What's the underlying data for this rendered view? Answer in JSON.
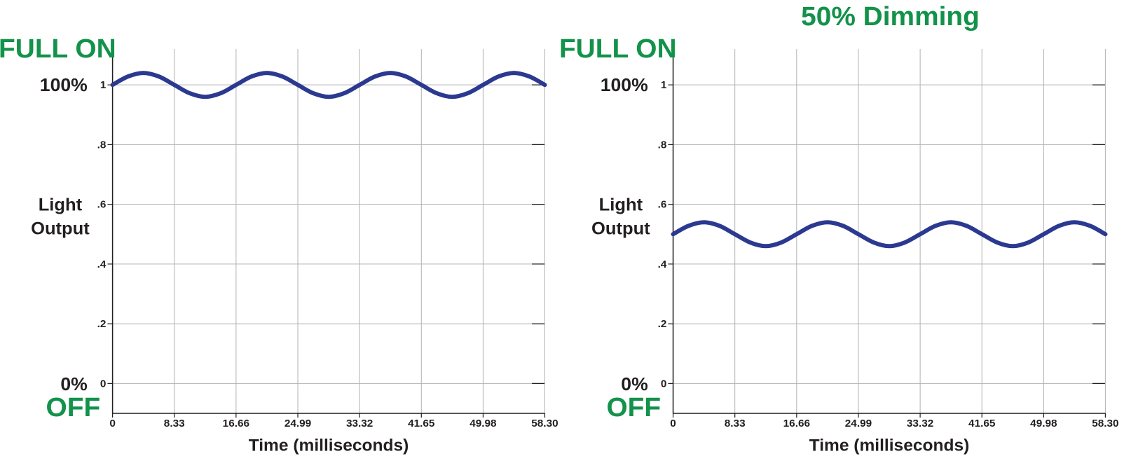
{
  "chart_data": [
    {
      "type": "line",
      "annotations": [
        "FULL ON",
        "100%",
        "0%",
        "OFF"
      ],
      "y_label": [
        "Light",
        "Output"
      ],
      "x_label": "Time (milliseconds)",
      "x": [
        0,
        2.08,
        4.16,
        6.25,
        8.33,
        10.41,
        12.5,
        14.58,
        16.66,
        18.74,
        20.82,
        22.91,
        24.99,
        27.07,
        29.16,
        31.24,
        33.32,
        35.4,
        37.48,
        39.57,
        41.65,
        43.73,
        45.82,
        47.9,
        49.98,
        52.06,
        54.14,
        56.23,
        58.3
      ],
      "series": [
        {
          "color": "#2b3990",
          "values": [
            1,
            1.028,
            1.04,
            1.028,
            1,
            0.972,
            0.96,
            0.972,
            1,
            1.028,
            1.04,
            1.028,
            1,
            0.972,
            0.96,
            0.972,
            1,
            1.028,
            1.04,
            1.028,
            1,
            0.972,
            0.96,
            0.972,
            1,
            1.028,
            1.04,
            1.028,
            1
          ]
        }
      ],
      "xlim": [
        0,
        58.3
      ],
      "xticks": [
        0,
        8.33,
        16.66,
        24.99,
        33.32,
        41.65,
        49.98,
        {
          "value": 58.3,
          "label": "58.30"
        }
      ],
      "ylim": [
        -0.1,
        1.12
      ],
      "yticks": [
        0,
        {
          "value": 0.2,
          "label": ".2"
        },
        {
          "value": 0.4,
          "label": ".4"
        },
        {
          "value": 0.6,
          "label": ".6"
        },
        {
          "value": 0.8,
          "label": ".8"
        },
        1
      ],
      "grid": true
    },
    {
      "type": "line",
      "title": "50% Dimming",
      "annotations": [
        "FULL ON",
        "100%",
        "0%",
        "OFF"
      ],
      "y_label": [
        "Light",
        "Output"
      ],
      "x_label": "Time (milliseconds)",
      "x": [
        0,
        2.08,
        4.16,
        6.25,
        8.33,
        10.41,
        12.5,
        14.58,
        16.66,
        18.74,
        20.82,
        22.91,
        24.99,
        27.07,
        29.16,
        31.24,
        33.32,
        35.4,
        37.48,
        39.57,
        41.65,
        43.73,
        45.82,
        47.9,
        49.98,
        52.06,
        54.14,
        56.23,
        58.3
      ],
      "series": [
        {
          "color": "#2b3990",
          "values": [
            0.5,
            0.528,
            0.54,
            0.528,
            0.5,
            0.472,
            0.46,
            0.472,
            0.5,
            0.528,
            0.54,
            0.528,
            0.5,
            0.472,
            0.46,
            0.472,
            0.5,
            0.528,
            0.54,
            0.528,
            0.5,
            0.472,
            0.46,
            0.472,
            0.5,
            0.528,
            0.54,
            0.528,
            0.5
          ]
        }
      ],
      "xlim": [
        0,
        58.3
      ],
      "xticks": [
        0,
        8.33,
        16.66,
        24.99,
        33.32,
        41.65,
        49.98,
        {
          "value": 58.3,
          "label": "58.30"
        }
      ],
      "ylim": [
        -0.1,
        1.12
      ],
      "yticks": [
        0,
        {
          "value": 0.2,
          "label": ".2"
        },
        {
          "value": 0.4,
          "label": ".4"
        },
        {
          "value": 0.6,
          "label": ".6"
        },
        {
          "value": 0.8,
          "label": ".8"
        },
        1
      ],
      "grid": true
    }
  ]
}
